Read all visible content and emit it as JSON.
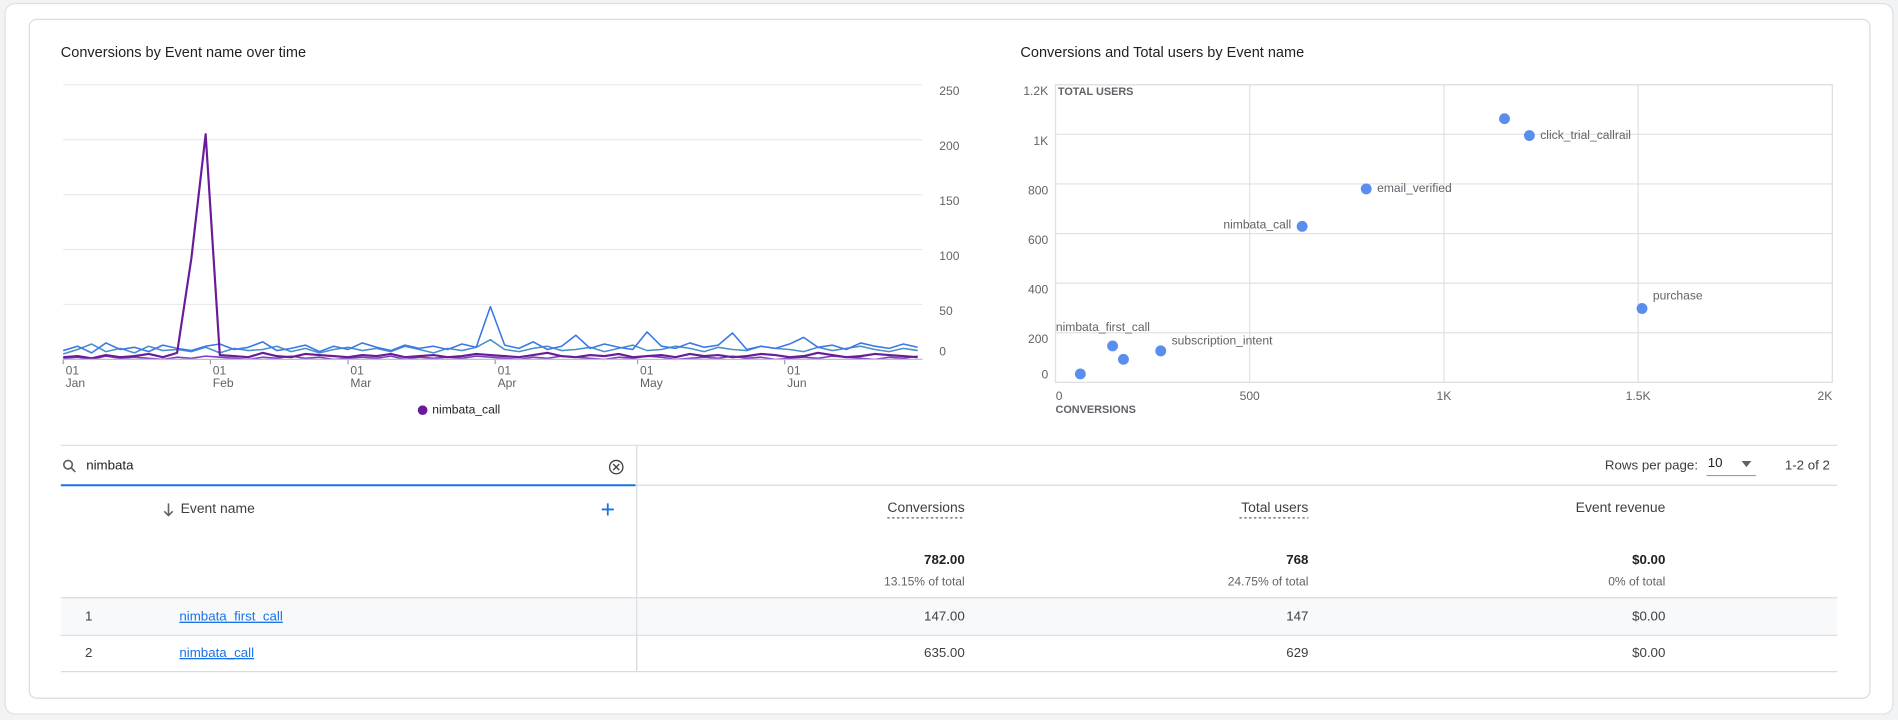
{
  "chart_data": [
    {
      "type": "line",
      "title": "Conversions by Event name over time",
      "x": [
        0,
        3,
        6,
        9,
        12,
        15,
        18,
        21,
        24,
        27,
        30,
        33,
        36,
        39,
        42,
        45,
        48,
        51,
        54,
        57,
        60,
        63,
        66,
        69,
        72,
        75,
        78,
        81,
        84,
        87,
        90,
        93,
        96,
        99,
        102,
        105,
        108,
        111,
        114,
        117,
        120,
        123,
        126,
        129,
        132,
        135,
        138,
        141,
        144,
        147,
        150,
        153,
        156,
        159,
        162,
        165,
        168,
        171,
        174,
        177,
        180
      ],
      "xlim": [
        0,
        181
      ],
      "xticks": [
        {
          "value": 0,
          "label": [
            "01",
            "Jan"
          ]
        },
        {
          "value": 31,
          "label": [
            "01",
            "Feb"
          ]
        },
        {
          "value": 60,
          "label": [
            "01",
            "Mar"
          ]
        },
        {
          "value": 91,
          "label": [
            "01",
            "Apr"
          ]
        },
        {
          "value": 121,
          "label": [
            "01",
            "May"
          ]
        },
        {
          "value": 152,
          "label": [
            "01",
            "Jun"
          ]
        }
      ],
      "ylim": [
        0,
        250
      ],
      "yticks": [
        0,
        50,
        100,
        150,
        200,
        250
      ],
      "grid": true,
      "series": [
        {
          "name": "nimbata_call",
          "color": "#6a1b9a",
          "values": [
            2,
            3,
            1,
            4,
            2,
            3,
            5,
            2,
            6,
            92,
            205,
            4,
            3,
            2,
            6,
            3,
            2,
            5,
            4,
            3,
            2,
            4,
            3,
            5,
            2,
            3,
            4,
            2,
            3,
            5,
            4,
            3,
            2,
            4,
            6,
            3,
            2,
            4,
            3,
            5,
            2,
            3,
            4,
            2,
            5,
            3,
            4,
            2,
            3,
            5,
            4,
            2,
            3,
            6,
            4,
            2,
            3,
            5,
            4,
            3,
            2
          ]
        },
        {
          "color": "#3b78e7",
          "values": [
            8,
            12,
            6,
            15,
            9,
            11,
            7,
            13,
            10,
            8,
            12,
            14,
            9,
            11,
            16,
            8,
            10,
            13,
            7,
            12,
            9,
            15,
            11,
            8,
            13,
            10,
            12,
            9,
            14,
            11,
            48,
            13,
            10,
            16,
            9,
            12,
            22,
            10,
            14,
            11,
            9,
            25,
            12,
            10,
            15,
            11,
            13,
            24,
            9,
            12,
            10,
            14,
            20,
            11,
            13,
            9,
            15,
            12,
            10,
            14,
            11
          ]
        },
        {
          "color": "#4a90c8",
          "values": [
            5,
            9,
            14,
            7,
            10,
            6,
            12,
            8,
            9,
            7,
            11,
            6,
            10,
            8,
            9,
            12,
            7,
            10,
            6,
            9,
            11,
            8,
            10,
            7,
            12,
            9,
            6,
            10,
            8,
            11,
            18,
            9,
            7,
            10,
            12,
            8,
            9,
            11,
            7,
            10,
            13,
            8,
            9,
            12,
            10,
            7,
            11,
            9,
            8,
            12,
            10,
            9,
            7,
            11,
            8,
            10,
            12,
            9,
            7,
            10,
            8
          ]
        },
        {
          "color": "#7b3fc4",
          "values": [
            1,
            2,
            0,
            3,
            1,
            2,
            1,
            0,
            2,
            1,
            3,
            2,
            1,
            0,
            2,
            1,
            3,
            1,
            2,
            0,
            1,
            2,
            1,
            3,
            0,
            2,
            1,
            2,
            1,
            3,
            2,
            1,
            0,
            2,
            1,
            3,
            2,
            1,
            0,
            2,
            1,
            3,
            2,
            0,
            1,
            2,
            1,
            3,
            1,
            2,
            0,
            1,
            2,
            1,
            3,
            2,
            1,
            0,
            2,
            1,
            3
          ]
        }
      ]
    },
    {
      "type": "scatter",
      "title": "Conversions and Total users by Event name",
      "xlabel": "CONVERSIONS",
      "ylabel": "TOTAL USERS",
      "xlim": [
        0,
        2000
      ],
      "xticks": [
        0,
        500,
        {
          "value": 1000,
          "label": "1K"
        },
        {
          "value": 1500,
          "label": "1.5K"
        },
        {
          "value": 2000,
          "label": "2K"
        }
      ],
      "ylim": [
        0,
        1200
      ],
      "yticks": [
        0,
        200,
        400,
        600,
        800,
        {
          "value": 1000,
          "label": "1K"
        },
        {
          "value": 1200,
          "label": "1.2K"
        }
      ],
      "grid": true,
      "color": "#5b8def",
      "x": [
        1156,
        1220,
        800,
        635,
        1510,
        147,
        271,
        175,
        64
      ],
      "values": [
        1063,
        995,
        780,
        629,
        298,
        147,
        127,
        93,
        34
      ],
      "point_labels": [
        null,
        "click_trial_callrail",
        "email_verified",
        "nimbata_call",
        "purchase",
        "nimbata_first_call",
        "subscription_intent",
        null,
        null
      ]
    }
  ],
  "search": {
    "value": "nimbata"
  },
  "pagination": {
    "label": "Rows per page:",
    "rows_per_page": "10",
    "range": "1-2 of 2"
  },
  "table": {
    "columns": [
      "Event name",
      "Conversions",
      "Total users",
      "Event revenue"
    ],
    "totals": [
      [
        "782.00",
        "13.15% of total"
      ],
      [
        "768",
        "24.75% of total"
      ],
      [
        "$0.00",
        "0% of total"
      ]
    ],
    "rows": [
      [
        "1",
        "nimbata_first_call",
        "147.00",
        "147",
        "$0.00"
      ],
      [
        "2",
        "nimbata_call",
        "635.00",
        "629",
        "$0.00"
      ]
    ]
  }
}
